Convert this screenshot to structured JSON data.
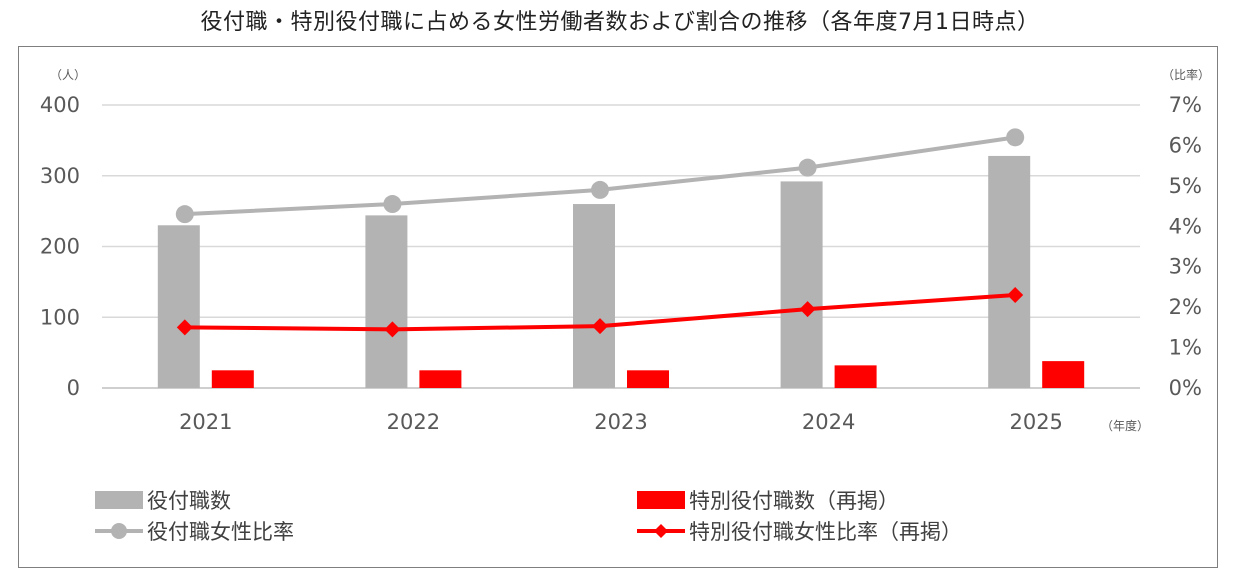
{
  "chart_data": {
    "type": "bar",
    "title": "役付職・特別役付職に占める女性労働者数および割合の推移（各年度7月1日時点）",
    "categories": [
      "2021",
      "2022",
      "2023",
      "2024",
      "2025"
    ],
    "x_unit": "（年度）",
    "y_left": {
      "unit": "（人）",
      "min": 0,
      "max": 400,
      "ticks": [
        "0",
        "100",
        "200",
        "300",
        "400"
      ]
    },
    "y_right": {
      "unit": "（比率）",
      "min": 0,
      "max": 7,
      "ticks": [
        "0%",
        "1%",
        "2%",
        "3%",
        "4%",
        "5%",
        "6%",
        "7%"
      ]
    },
    "grid": true,
    "legend_position": "bottom",
    "series": [
      {
        "name": "役付職数",
        "kind": "bar",
        "axis": "left",
        "color": "#b3b3b3",
        "values": [
          230,
          244,
          260,
          292,
          328
        ]
      },
      {
        "name": "特別役付職数（再掲）",
        "kind": "bar",
        "axis": "left",
        "color": "#ff0000",
        "values": [
          25,
          25,
          25,
          32,
          38
        ]
      },
      {
        "name": "役付職女性比率",
        "kind": "line",
        "marker": "circle",
        "axis": "right",
        "color": "#b3b3b3",
        "values": [
          4.3,
          4.55,
          4.9,
          5.45,
          6.2
        ]
      },
      {
        "name": "特別役付職女性比率（再掲）",
        "kind": "line",
        "marker": "diamond",
        "axis": "right",
        "color": "#ff0000",
        "values": [
          1.5,
          1.45,
          1.53,
          1.95,
          2.3
        ]
      }
    ]
  }
}
